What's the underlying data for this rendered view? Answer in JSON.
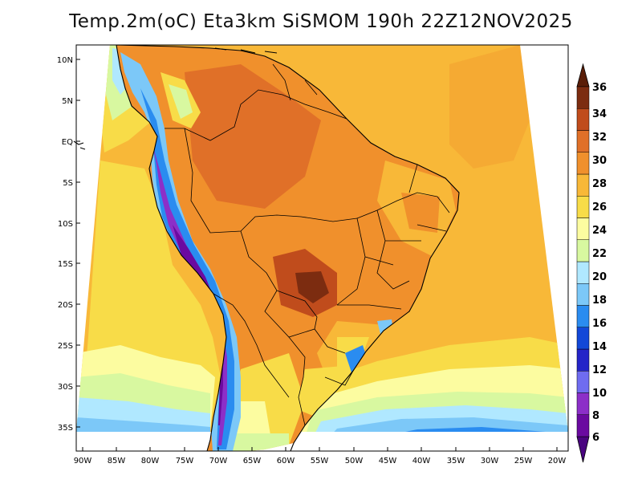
{
  "title": "Temp.2m(oC) Eta3km SiSMOM 190h 22Z12NOV2025",
  "map": {
    "variable": "2 m temperature",
    "unit": "oC",
    "lat_labels": [
      "10N",
      "5N",
      "EQ",
      "5S",
      "10S",
      "15S",
      "20S",
      "25S",
      "30S",
      "35S"
    ],
    "lon_labels": [
      "90W",
      "85W",
      "80W",
      "75W",
      "70W",
      "65W",
      "60W",
      "55W",
      "50W",
      "45W",
      "40W",
      "35W",
      "30W",
      "25W",
      "20W"
    ]
  },
  "colorbar": {
    "labels": [
      "6",
      "8",
      "10",
      "12",
      "14",
      "16",
      "18",
      "20",
      "22",
      "24",
      "26",
      "28",
      "30",
      "32",
      "34",
      "36"
    ],
    "colors": [
      "#6a0aa0",
      "#8c2fc8",
      "#6f6cf0",
      "#2424c8",
      "#1248d8",
      "#2a8cf0",
      "#7cc8f8",
      "#b0e8ff",
      "#d8f8a0",
      "#fcfca0",
      "#f8dc48",
      "#f8b838",
      "#f0902c",
      "#e07028",
      "#c04c1c",
      "#7c2c10"
    ]
  }
}
